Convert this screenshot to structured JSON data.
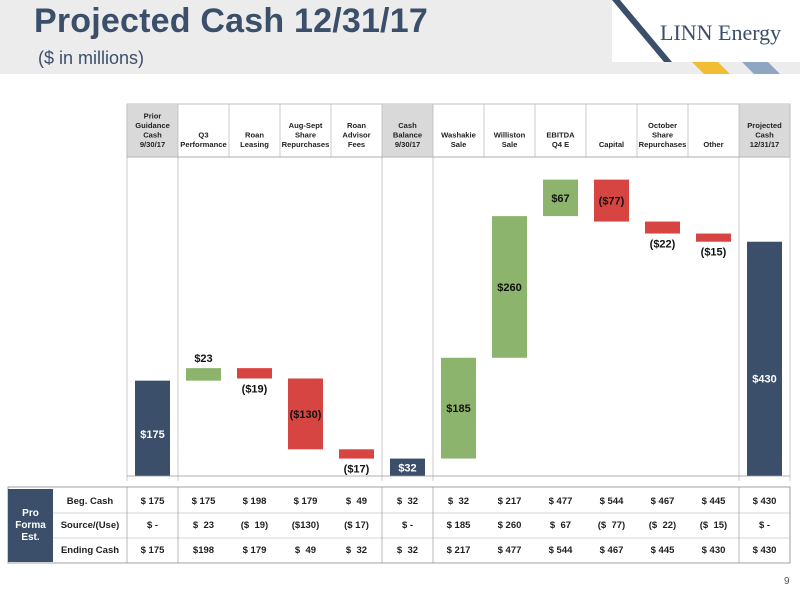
{
  "header": {
    "title": "Projected Cash 12/31/17",
    "subtitle": "($ in millions)",
    "logo_text": "LINN Energy",
    "stripe_colors": [
      "#f2bd33",
      "#8ea6c4",
      "#ffffff"
    ]
  },
  "page_number": "9",
  "colors": {
    "total": "#3b4f6b",
    "increase": "#8db46d",
    "decrease": "#d64541",
    "column_header_bg": "#d9d9d9",
    "pro_forma_bg": "#3b4f6b"
  },
  "chart_data": {
    "type": "waterfall",
    "title": "Projected Cash 12/31/17",
    "subtitle": "($ in millions)",
    "ylim": [
      0,
      500
    ],
    "categories": [
      "Prior Guidance Cash 9/30/17",
      "Q3 Performance",
      "Roan Leasing",
      "Aug-Sept Share Repurchases",
      "Roan Advisor Fees",
      "Cash Balance 9/30/17",
      "Washakie Sale",
      "Williston Sale",
      "EBITDA Q4 E",
      "Capital",
      "October Share Repurchases",
      "Other",
      "Projected Cash 12/31/17"
    ],
    "header_lines": [
      [
        "Prior",
        "Guidance",
        "Cash",
        "9/30/17"
      ],
      [
        "Q3",
        "Performance"
      ],
      [
        "Roan",
        "Leasing"
      ],
      [
        "Aug-Sept",
        "Share",
        "Repurchases"
      ],
      [
        "Roan",
        "Advisor",
        "Fees"
      ],
      [
        "Cash",
        "Balance",
        "9/30/17"
      ],
      [
        "Washakie",
        "Sale"
      ],
      [
        "Williston",
        "Sale"
      ],
      [
        "EBITDA",
        "Q4 E"
      ],
      [
        "Capital"
      ],
      [
        "October",
        "Share",
        "Repurchases"
      ],
      [
        "Other"
      ],
      [
        "Projected",
        "Cash",
        "12/31/17"
      ]
    ],
    "bars": [
      {
        "kind": "total",
        "start": 0,
        "end": 175,
        "label": "$175"
      },
      {
        "kind": "increase",
        "start": 175,
        "end": 198,
        "label": "$23"
      },
      {
        "kind": "decrease",
        "start": 198,
        "end": 179,
        "label": "($19)"
      },
      {
        "kind": "decrease",
        "start": 179,
        "end": 49,
        "label": "($130)"
      },
      {
        "kind": "decrease",
        "start": 49,
        "end": 32,
        "label": "($17)"
      },
      {
        "kind": "total",
        "start": 0,
        "end": 32,
        "label": "$32"
      },
      {
        "kind": "increase",
        "start": 32,
        "end": 217,
        "label": "$185"
      },
      {
        "kind": "increase",
        "start": 217,
        "end": 477,
        "label": "$260"
      },
      {
        "kind": "increase",
        "start": 477,
        "end": 544,
        "label": "$67"
      },
      {
        "kind": "decrease",
        "start": 544,
        "end": 467,
        "label": "($77)"
      },
      {
        "kind": "decrease",
        "start": 467,
        "end": 445,
        "label": "($22)"
      },
      {
        "kind": "decrease",
        "start": 445,
        "end": 430,
        "label": "($15)"
      },
      {
        "kind": "total",
        "start": 0,
        "end": 430,
        "label": "$430"
      }
    ]
  },
  "table": {
    "section_label": "Pro\nForma\nEst.",
    "rows": [
      {
        "label": "Beg. Cash",
        "cells": [
          "$ 175",
          "$ 175",
          "$ 198",
          "$ 179",
          "$  49",
          "$  32",
          "$  32",
          "$ 217",
          "$ 477",
          "$ 544",
          "$ 467",
          "$ 445",
          "$ 430"
        ]
      },
      {
        "label": "Source/(Use)",
        "cells": [
          "$ -",
          "$  23",
          "($  19)",
          "($130)",
          "($ 17)",
          "$ -",
          "$ 185",
          "$ 260",
          "$  67",
          "($  77)",
          "($  22)",
          "($  15)",
          "$ -"
        ]
      },
      {
        "label": "Ending Cash",
        "cells": [
          "$ 175",
          "$198",
          "$ 179",
          "$  49",
          "$  32",
          "$  32",
          "$ 217",
          "$ 477",
          "$ 544",
          "$ 467",
          "$ 445",
          "$ 430",
          "$ 430"
        ]
      }
    ]
  }
}
